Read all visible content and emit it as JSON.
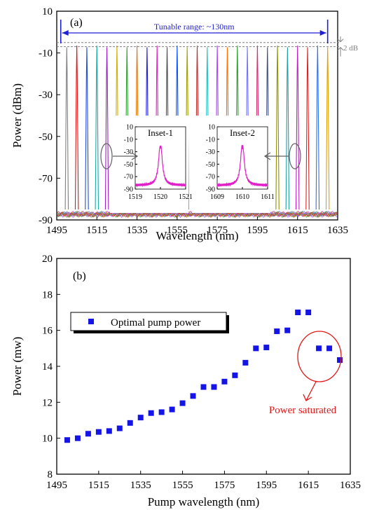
{
  "colors": {
    "frame": "#000000",
    "tunable_arrow": "#1f1fd6",
    "db_annotation": "#808080",
    "inset_trace": "#e020c8",
    "markers": "#1414e6",
    "saturation": "#e01818",
    "spectrum_palette": [
      "#808080",
      "#e01818",
      "#1f4fe0",
      "#18a8a8",
      "#a020c8",
      "#d0b000",
      "#30a030",
      "#e07a10",
      "#1f1fd6",
      "#e020c8",
      "#505050",
      "#0050ff",
      "#a0a000",
      "#c03030",
      "#20c0c0",
      "#b040ff",
      "#ff7000",
      "#2aa02a",
      "#7070ff",
      "#d03070",
      "#405080",
      "#909000",
      "#20a0a0",
      "#c020c0",
      "#e02020",
      "#3070e0",
      "#e0a000",
      "#20c030",
      "#0000c0"
    ]
  },
  "chart_data": [
    {
      "panel": "(a)",
      "type": "line",
      "xlabel": "Wavelength (nm)",
      "ylabel": "Power (dBm)",
      "xlim": [
        1495,
        1635
      ],
      "ylim": [
        -90,
        10
      ],
      "xticks": [
        "1495",
        "1515",
        "1535",
        "1555",
        "1575",
        "1595",
        "1615",
        "1635"
      ],
      "yticks": [
        "10",
        "-10",
        "-30",
        "-50",
        "-70",
        "-90"
      ],
      "peak_wavelengths": [
        1500,
        1505,
        1510,
        1515,
        1520,
        1525,
        1530,
        1535,
        1540,
        1545,
        1550,
        1555,
        1560,
        1565,
        1570,
        1575,
        1580,
        1585,
        1590,
        1595,
        1600,
        1605,
        1610,
        1615,
        1620,
        1625,
        1630
      ],
      "peak_power_dBm": -7,
      "noise_floor_dBm": -87,
      "tunable_range_label": "Tunable range: ~130nm",
      "tunable_range_nm": [
        1497,
        1630
      ],
      "flatness_label": "2 dB",
      "flatness_dB": [
        -7,
        -5
      ],
      "insets": [
        {
          "title": "Inset-1",
          "center_nm": 1520,
          "xlim": [
            1519,
            1521
          ],
          "xticks": [
            "1519",
            "1520",
            "1521"
          ],
          "ylim": [
            -90,
            10
          ],
          "yticks": [
            "10",
            "-10",
            "-30",
            "-50",
            "-70",
            "-90"
          ]
        },
        {
          "title": "Inset-2",
          "center_nm": 1610,
          "xlim": [
            1609,
            1611
          ],
          "xticks": [
            "1609",
            "1610",
            "1611"
          ],
          "ylim": [
            -90,
            10
          ],
          "yticks": [
            "10",
            "-10",
            "-30",
            "-50",
            "-70",
            "-90"
          ]
        }
      ]
    },
    {
      "panel": "(b)",
      "type": "scatter",
      "xlabel": "Pump wavelength (nm)",
      "ylabel": "Power (mw)",
      "xlim": [
        1495,
        1635
      ],
      "ylim": [
        8,
        20
      ],
      "xticks": [
        "1495",
        "1515",
        "1535",
        "1555",
        "1575",
        "1595",
        "1615",
        "1635"
      ],
      "yticks": [
        "8",
        "10",
        "12",
        "14",
        "16",
        "18",
        "20"
      ],
      "legend": {
        "label": "Optimal pump power",
        "placement": "top-left"
      },
      "annotation": "Power saturated",
      "series": [
        {
          "name": "Optimal pump power",
          "x": [
            1500,
            1505,
            1510,
            1515,
            1520,
            1525,
            1530,
            1535,
            1540,
            1545,
            1550,
            1555,
            1560,
            1565,
            1570,
            1575,
            1580,
            1585,
            1590,
            1595,
            1600,
            1605,
            1610,
            1615,
            1620,
            1625,
            1630
          ],
          "y": [
            9.9,
            10.0,
            10.25,
            10.35,
            10.4,
            10.55,
            10.85,
            11.15,
            11.4,
            11.45,
            11.6,
            11.95,
            12.35,
            12.85,
            12.85,
            13.15,
            13.5,
            14.2,
            15.0,
            15.05,
            15.95,
            16.0,
            17.0,
            17.0,
            15.0,
            15.0,
            14.35
          ]
        }
      ]
    }
  ]
}
